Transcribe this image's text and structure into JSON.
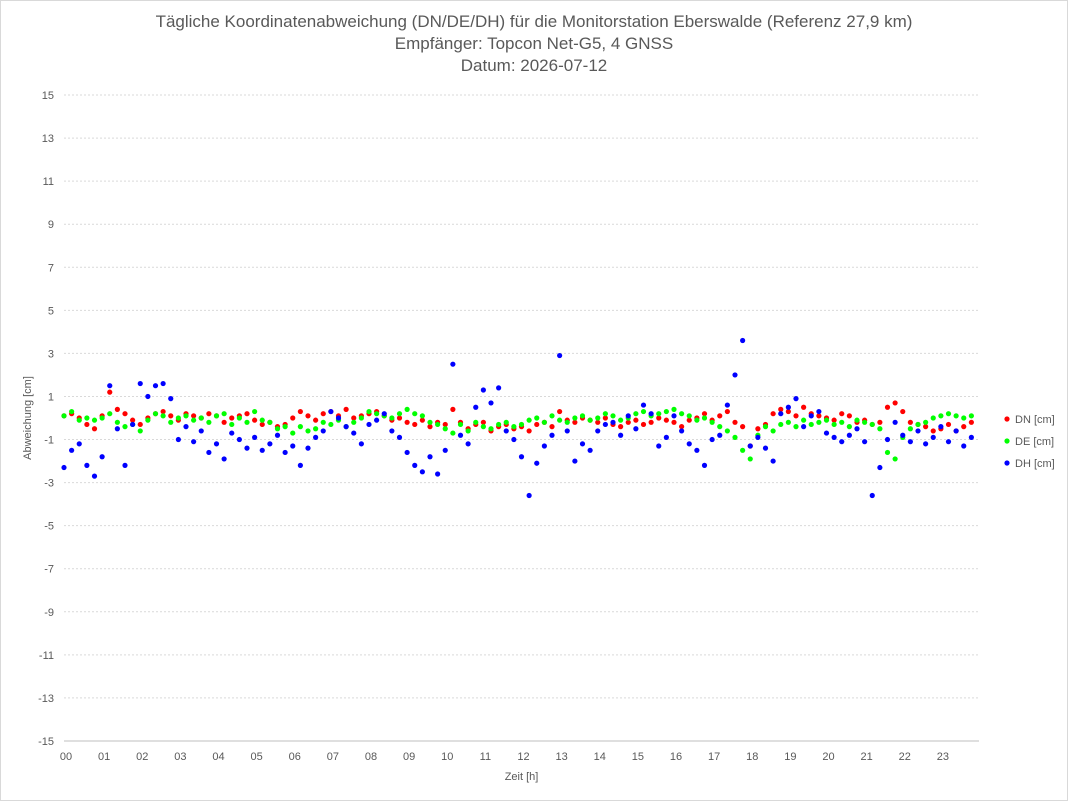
{
  "chart_data": {
    "type": "scatter",
    "title": "Tägliche Koordinatenabweichung (DN/DE/DH) für die Monitorstation Eberswalde (Referenz 27,9 km)",
    "subtitle": "Empfänger: Topcon Net-G5, 4 GNSS",
    "date_line": "Datum: 2026-07-12",
    "xlabel": "Zeit [h]",
    "ylabel": "Abweichung [cm]",
    "xlim": [
      0,
      24
    ],
    "ylim": [
      -15,
      15
    ],
    "x_ticks": [
      "00",
      "01",
      "02",
      "03",
      "04",
      "05",
      "06",
      "07",
      "08",
      "09",
      "10",
      "11",
      "12",
      "13",
      "14",
      "15",
      "16",
      "17",
      "18",
      "19",
      "20",
      "21",
      "22",
      "23"
    ],
    "y_ticks": [
      15,
      13,
      11,
      9,
      7,
      5,
      3,
      1,
      -1,
      -3,
      -5,
      -7,
      -9,
      -11,
      -13,
      -15
    ],
    "grid": true,
    "legend_position": "right",
    "series": [
      {
        "name": "DN [cm]",
        "color": "#ff0000",
        "x": [
          0.0,
          0.2,
          0.4,
          0.6,
          0.8,
          1.0,
          1.2,
          1.4,
          1.6,
          1.8,
          2.0,
          2.2,
          2.4,
          2.6,
          2.8,
          3.0,
          3.2,
          3.4,
          3.6,
          3.8,
          4.0,
          4.2,
          4.4,
          4.6,
          4.8,
          5.0,
          5.2,
          5.4,
          5.6,
          5.8,
          6.0,
          6.2,
          6.4,
          6.6,
          6.8,
          7.0,
          7.2,
          7.4,
          7.6,
          7.8,
          8.0,
          8.2,
          8.4,
          8.6,
          8.8,
          9.0,
          9.2,
          9.4,
          9.6,
          9.8,
          10.0,
          10.2,
          10.4,
          10.6,
          10.8,
          11.0,
          11.2,
          11.4,
          11.6,
          11.8,
          12.0,
          12.2,
          12.4,
          12.6,
          12.8,
          13.0,
          13.2,
          13.4,
          13.6,
          13.8,
          14.0,
          14.2,
          14.4,
          14.6,
          14.8,
          15.0,
          15.2,
          15.4,
          15.6,
          15.8,
          16.0,
          16.2,
          16.4,
          16.6,
          16.8,
          17.0,
          17.2,
          17.4,
          17.6,
          17.8,
          18.0,
          18.2,
          18.4,
          18.6,
          18.8,
          19.0,
          19.2,
          19.4,
          19.6,
          19.8,
          20.0,
          20.2,
          20.4,
          20.6,
          20.8,
          21.0,
          21.2,
          21.4,
          21.6,
          21.8,
          22.0,
          22.2,
          22.4,
          22.6,
          22.8,
          23.0,
          23.2,
          23.4,
          23.6,
          23.8
        ],
        "values": [
          0.1,
          0.2,
          0.0,
          -0.3,
          -0.5,
          0.1,
          1.2,
          0.4,
          0.2,
          -0.1,
          -0.3,
          0.0,
          0.2,
          0.3,
          0.1,
          -0.1,
          0.2,
          0.1,
          0.0,
          0.2,
          0.1,
          -0.2,
          0.0,
          0.1,
          0.2,
          -0.1,
          -0.3,
          -0.2,
          -0.4,
          -0.3,
          0.0,
          0.3,
          0.1,
          -0.1,
          0.2,
          0.3,
          0.1,
          0.4,
          0.0,
          0.1,
          0.2,
          0.3,
          0.1,
          -0.1,
          0.0,
          -0.2,
          -0.3,
          -0.1,
          -0.4,
          -0.2,
          -0.3,
          0.4,
          -0.2,
          -0.5,
          -0.3,
          -0.2,
          -0.6,
          -0.4,
          -0.3,
          -0.5,
          -0.4,
          -0.6,
          -0.3,
          -0.2,
          -0.4,
          0.3,
          -0.1,
          -0.2,
          0.0,
          -0.1,
          -0.2,
          0.0,
          -0.3,
          -0.4,
          -0.2,
          -0.1,
          -0.3,
          -0.2,
          0.0,
          -0.1,
          -0.2,
          -0.4,
          -0.1,
          0.0,
          0.2,
          -0.1,
          0.1,
          0.3,
          -0.2,
          -0.4,
          -1.3,
          -0.5,
          -0.3,
          0.2,
          0.4,
          0.3,
          0.1,
          0.5,
          0.2,
          0.1,
          0.0,
          -0.1,
          0.2,
          0.1,
          -0.2,
          -0.1,
          -0.3,
          -0.2,
          0.5,
          0.7,
          0.3,
          -0.2,
          -0.3,
          -0.4,
          -0.6,
          -0.5,
          -0.3,
          -0.6,
          -0.4,
          -0.2
        ]
      },
      {
        "name": "DE [cm]",
        "color": "#00ff00",
        "x": [
          0.0,
          0.2,
          0.4,
          0.6,
          0.8,
          1.0,
          1.2,
          1.4,
          1.6,
          1.8,
          2.0,
          2.2,
          2.4,
          2.6,
          2.8,
          3.0,
          3.2,
          3.4,
          3.6,
          3.8,
          4.0,
          4.2,
          4.4,
          4.6,
          4.8,
          5.0,
          5.2,
          5.4,
          5.6,
          5.8,
          6.0,
          6.2,
          6.4,
          6.6,
          6.8,
          7.0,
          7.2,
          7.4,
          7.6,
          7.8,
          8.0,
          8.2,
          8.4,
          8.6,
          8.8,
          9.0,
          9.2,
          9.4,
          9.6,
          9.8,
          10.0,
          10.2,
          10.4,
          10.6,
          10.8,
          11.0,
          11.2,
          11.4,
          11.6,
          11.8,
          12.0,
          12.2,
          12.4,
          12.6,
          12.8,
          13.0,
          13.2,
          13.4,
          13.6,
          13.8,
          14.0,
          14.2,
          14.4,
          14.6,
          14.8,
          15.0,
          15.2,
          15.4,
          15.6,
          15.8,
          16.0,
          16.2,
          16.4,
          16.6,
          16.8,
          17.0,
          17.2,
          17.4,
          17.6,
          17.8,
          18.0,
          18.2,
          18.4,
          18.6,
          18.8,
          19.0,
          19.2,
          19.4,
          19.6,
          19.8,
          20.0,
          20.2,
          20.4,
          20.6,
          20.8,
          21.0,
          21.2,
          21.4,
          21.6,
          21.8,
          22.0,
          22.2,
          22.4,
          22.6,
          22.8,
          23.0,
          23.2,
          23.4,
          23.6,
          23.8
        ],
        "values": [
          0.1,
          0.3,
          -0.1,
          0.0,
          -0.1,
          0.0,
          0.2,
          -0.2,
          -0.4,
          -0.3,
          -0.6,
          -0.1,
          0.2,
          0.1,
          -0.2,
          0.0,
          0.1,
          -0.1,
          0.0,
          -0.2,
          0.1,
          0.2,
          -0.3,
          0.0,
          -0.2,
          0.3,
          -0.1,
          -0.2,
          -0.5,
          -0.4,
          -0.7,
          -0.4,
          -0.6,
          -0.5,
          -0.2,
          -0.3,
          -0.1,
          -0.4,
          -0.2,
          0.0,
          0.3,
          0.2,
          0.1,
          0.0,
          0.2,
          0.4,
          0.2,
          0.1,
          -0.2,
          -0.3,
          -0.5,
          -0.7,
          -0.3,
          -0.6,
          -0.2,
          -0.4,
          -0.5,
          -0.3,
          -0.2,
          -0.4,
          -0.3,
          -0.1,
          0.0,
          -0.2,
          0.1,
          -0.1,
          -0.2,
          0.0,
          0.1,
          -0.1,
          0.0,
          0.2,
          0.1,
          -0.1,
          0.0,
          0.2,
          0.3,
          0.1,
          0.2,
          0.3,
          0.4,
          0.2,
          0.1,
          -0.1,
          0.0,
          -0.2,
          -0.4,
          -0.6,
          -0.9,
          -1.5,
          -1.9,
          -0.8,
          -0.4,
          -0.6,
          -0.3,
          -0.2,
          -0.4,
          -0.1,
          -0.3,
          -0.2,
          -0.1,
          -0.3,
          -0.2,
          -0.4,
          -0.1,
          -0.2,
          -0.3,
          -0.5,
          -1.6,
          -1.9,
          -0.9,
          -0.5,
          -0.3,
          -0.2,
          0.0,
          0.1,
          0.2,
          0.1,
          0.0,
          0.1
        ]
      },
      {
        "name": "DH [cm]",
        "color": "#0000ff",
        "x": [
          0.0,
          0.2,
          0.4,
          0.6,
          0.8,
          1.0,
          1.2,
          1.4,
          1.6,
          1.8,
          2.0,
          2.2,
          2.4,
          2.6,
          2.8,
          3.0,
          3.2,
          3.4,
          3.6,
          3.8,
          4.0,
          4.2,
          4.4,
          4.6,
          4.8,
          5.0,
          5.2,
          5.4,
          5.6,
          5.8,
          6.0,
          6.2,
          6.4,
          6.6,
          6.8,
          7.0,
          7.2,
          7.4,
          7.6,
          7.8,
          8.0,
          8.2,
          8.4,
          8.6,
          8.8,
          9.0,
          9.2,
          9.4,
          9.6,
          9.8,
          10.0,
          10.2,
          10.4,
          10.6,
          10.8,
          11.0,
          11.2,
          11.4,
          11.6,
          11.8,
          12.0,
          12.2,
          12.4,
          12.6,
          12.8,
          13.0,
          13.2,
          13.4,
          13.6,
          13.8,
          14.0,
          14.2,
          14.4,
          14.6,
          14.8,
          15.0,
          15.2,
          15.4,
          15.6,
          15.8,
          16.0,
          16.2,
          16.4,
          16.6,
          16.8,
          17.0,
          17.2,
          17.4,
          17.6,
          17.8,
          18.0,
          18.2,
          18.4,
          18.6,
          18.8,
          19.0,
          19.2,
          19.4,
          19.6,
          19.8,
          20.0,
          20.2,
          20.4,
          20.6,
          20.8,
          21.0,
          21.2,
          21.4,
          21.6,
          21.8,
          22.0,
          22.2,
          22.4,
          22.6,
          22.8,
          23.0,
          23.2,
          23.4,
          23.6,
          23.8
        ],
        "values": [
          -2.3,
          -1.5,
          -1.2,
          -2.2,
          -2.7,
          -1.8,
          1.5,
          -0.5,
          -2.2,
          -0.3,
          1.6,
          1.0,
          1.5,
          1.6,
          0.9,
          -1.0,
          -0.4,
          -1.1,
          -0.6,
          -1.6,
          -1.2,
          -1.9,
          -0.7,
          -1.0,
          -1.4,
          -0.9,
          -1.5,
          -1.2,
          -0.8,
          -1.6,
          -1.3,
          -2.2,
          -1.4,
          -0.9,
          -0.6,
          0.3,
          0.0,
          -0.4,
          -0.7,
          -1.2,
          -0.3,
          -0.1,
          0.2,
          -0.6,
          -0.9,
          -1.6,
          -2.2,
          -2.5,
          -1.8,
          -2.6,
          -1.5,
          2.5,
          -0.8,
          -1.2,
          0.5,
          1.3,
          0.7,
          1.4,
          -0.6,
          -1.0,
          -1.8,
          -3.6,
          -2.1,
          -1.3,
          -0.8,
          2.9,
          -0.6,
          -2.0,
          -1.2,
          -1.5,
          -0.6,
          -0.3,
          -0.2,
          -0.8,
          0.1,
          -0.5,
          0.6,
          0.2,
          -1.3,
          -0.9,
          0.1,
          -0.6,
          -1.2,
          -1.5,
          -2.2,
          -1.0,
          -0.8,
          0.6,
          2.0,
          3.6,
          -1.3,
          -0.9,
          -1.4,
          -2.0,
          0.2,
          0.5,
          0.9,
          -0.4,
          0.1,
          0.3,
          -0.7,
          -0.9,
          -1.1,
          -0.8,
          -0.5,
          -1.1,
          -3.6,
          -2.3,
          -1.0,
          -0.2,
          -0.8,
          -1.1,
          -0.6,
          -1.2,
          -0.9,
          -0.4,
          -1.1,
          -0.6,
          -1.3,
          -0.9
        ]
      }
    ]
  }
}
